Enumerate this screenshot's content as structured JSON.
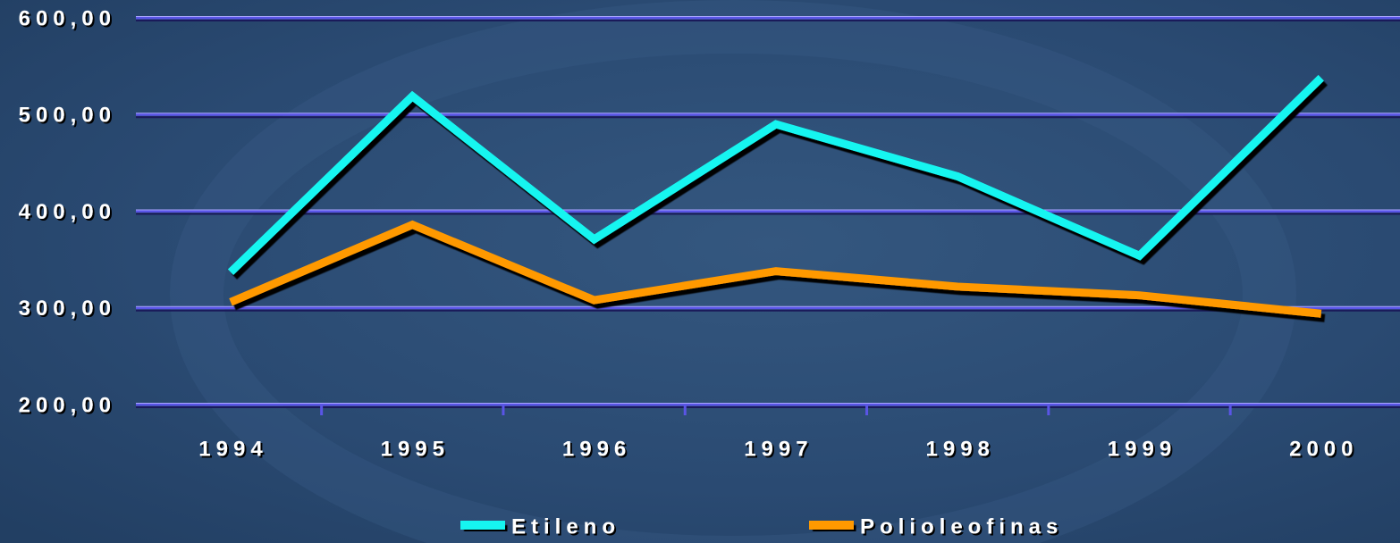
{
  "chart_data": {
    "type": "line",
    "categories": [
      "1994",
      "1995",
      "1996",
      "1997",
      "1998",
      "1999",
      "2000"
    ],
    "series": [
      {
        "name": "Etileno",
        "color": "#19f5f0",
        "values": [
          337,
          519,
          371,
          490,
          436,
          354,
          538
        ]
      },
      {
        "name": "Polioleofinas",
        "color": "#ff9900",
        "values": [
          306,
          386,
          308,
          338,
          322,
          313,
          294
        ]
      }
    ],
    "ylim": [
      200,
      600
    ],
    "yticks": [
      {
        "value": 200,
        "label": "200,00"
      },
      {
        "value": 300,
        "label": "300,00"
      },
      {
        "value": 400,
        "label": "400,00"
      },
      {
        "value": 500,
        "label": "500,00"
      },
      {
        "value": 600,
        "label": "600,00"
      }
    ],
    "grid": true,
    "legend": "bottom"
  }
}
